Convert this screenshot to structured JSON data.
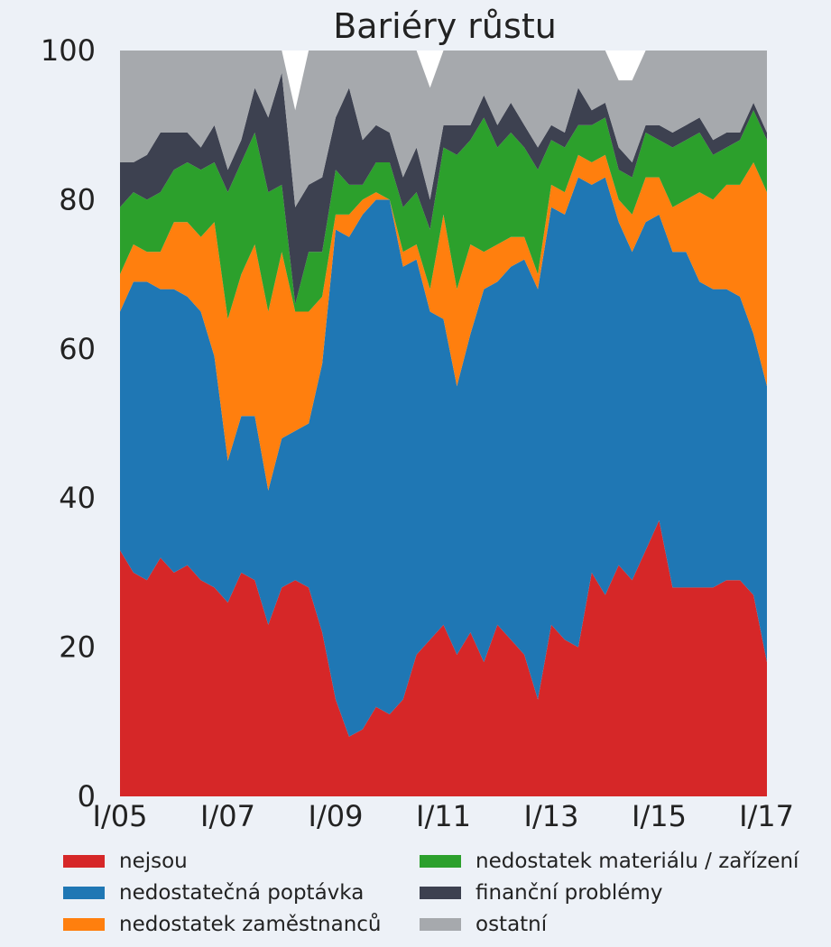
{
  "chart_data": {
    "type": "area",
    "stacked": true,
    "title": "Bariéry růstu",
    "xlabel": "",
    "ylabel": "",
    "ylim": [
      0,
      100
    ],
    "yticks": [
      0,
      20,
      40,
      60,
      80,
      100
    ],
    "x_start": "I/05",
    "x_end": "I/17",
    "xticks": [
      "I/05",
      "I/07",
      "I/09",
      "I/11",
      "I/13",
      "I/15",
      "I/17"
    ],
    "x_tick_positions": [
      0,
      8,
      16,
      24,
      32,
      40,
      48
    ],
    "points_per_year": 4,
    "series": [
      {
        "name": "nejsou",
        "color": "#d62728",
        "values": [
          33,
          30,
          29,
          32,
          30,
          31,
          29,
          28,
          26,
          30,
          29,
          23,
          28,
          29,
          28,
          22,
          13,
          8,
          9,
          12,
          11,
          13,
          19,
          21,
          23,
          19,
          22,
          18,
          23,
          21,
          19,
          13,
          23,
          21,
          20,
          30,
          27,
          31,
          29,
          33,
          37,
          28,
          28,
          28,
          28,
          29,
          29,
          27,
          18
        ]
      },
      {
        "name": "nedostatečná poptávka",
        "color": "#1f77b4",
        "values": [
          32,
          39,
          40,
          36,
          38,
          36,
          36,
          31,
          19,
          21,
          22,
          18,
          20,
          20,
          22,
          36,
          63,
          67,
          69,
          68,
          69,
          58,
          53,
          44,
          41,
          36,
          40,
          50,
          46,
          50,
          53,
          55,
          56,
          57,
          63,
          52,
          56,
          46,
          44,
          44,
          41,
          45,
          45,
          41,
          40,
          39,
          38,
          35,
          37
        ]
      },
      {
        "name": "nedostatek zaměstnanců",
        "color": "#ff7f0e",
        "values": [
          5,
          5,
          4,
          5,
          9,
          10,
          10,
          18,
          19,
          19,
          23,
          24,
          25,
          16,
          15,
          9,
          2,
          3,
          2,
          1,
          0,
          2,
          2,
          3,
          14,
          13,
          12,
          5,
          5,
          4,
          3,
          2,
          3,
          3,
          3,
          3,
          3,
          3,
          5,
          6,
          5,
          6,
          7,
          12,
          12,
          14,
          15,
          23,
          26
        ]
      },
      {
        "name": "nedostatek materiálu / zařízení",
        "color": "#2ca02c",
        "values": [
          9,
          7,
          7,
          8,
          7,
          8,
          9,
          8,
          17,
          15,
          15,
          16,
          9,
          1,
          8,
          6,
          6,
          4,
          2,
          4,
          5,
          6,
          7,
          8,
          9,
          18,
          14,
          18,
          13,
          14,
          12,
          14,
          6,
          6,
          4,
          5,
          5,
          4,
          5,
          6,
          5,
          8,
          8,
          8,
          6,
          5,
          6,
          7,
          7
        ]
      },
      {
        "name": "finanční problémy",
        "color": "#3d4150",
        "values": [
          6,
          4,
          6,
          8,
          5,
          4,
          3,
          5,
          3,
          3,
          6,
          10,
          15,
          13,
          9,
          10,
          7,
          13,
          6,
          5,
          4,
          4,
          6,
          4,
          3,
          4,
          2,
          3,
          3,
          4,
          3,
          3,
          2,
          2,
          5,
          2,
          2,
          3,
          2,
          1,
          2,
          2,
          2,
          2,
          2,
          2,
          1,
          1,
          1
        ]
      },
      {
        "name": "ostatní",
        "color": "#a6a9ad",
        "values": [
          15,
          15,
          14,
          11,
          11,
          11,
          13,
          10,
          16,
          12,
          5,
          9,
          3,
          13,
          18,
          17,
          9,
          5,
          14,
          10,
          11,
          17,
          13,
          15,
          10,
          10,
          10,
          6,
          10,
          7,
          10,
          13,
          10,
          11,
          5,
          8,
          7,
          9,
          11,
          10,
          10,
          11,
          10,
          9,
          12,
          11,
          11,
          7,
          11
        ]
      }
    ],
    "grid": false,
    "legend_position": "bottom"
  }
}
